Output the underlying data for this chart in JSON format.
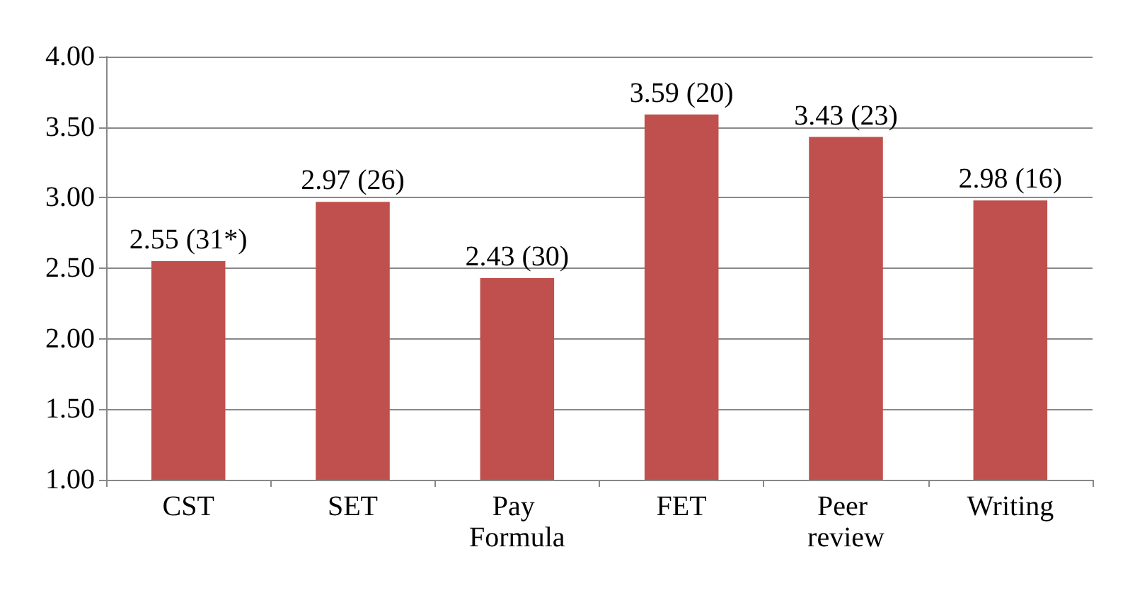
{
  "chart_data": {
    "type": "bar",
    "categories": [
      "CST",
      "SET",
      "Pay Formula",
      "FET",
      "Peer review",
      "Writing"
    ],
    "values": [
      2.55,
      2.97,
      2.43,
      3.59,
      3.43,
      2.98
    ],
    "value_labels": [
      "2.55 (31*)",
      "2.97 (26)",
      "2.43 (30)",
      "3.59 (20)",
      "3.43 (23)",
      "2.98 (16)"
    ],
    "color": "#c0504d",
    "ylim": [
      1,
      4
    ],
    "yticks": [
      {
        "value": 1,
        "label": "1.00"
      },
      {
        "value": 1.5,
        "label": "1.50"
      },
      {
        "value": 2,
        "label": "2.00"
      },
      {
        "value": 2.5,
        "label": "2.50"
      },
      {
        "value": 3,
        "label": "3.00"
      },
      {
        "value": 3.5,
        "label": "3.50"
      },
      {
        "value": 4,
        "label": "4.00"
      }
    ],
    "grid": "y"
  }
}
